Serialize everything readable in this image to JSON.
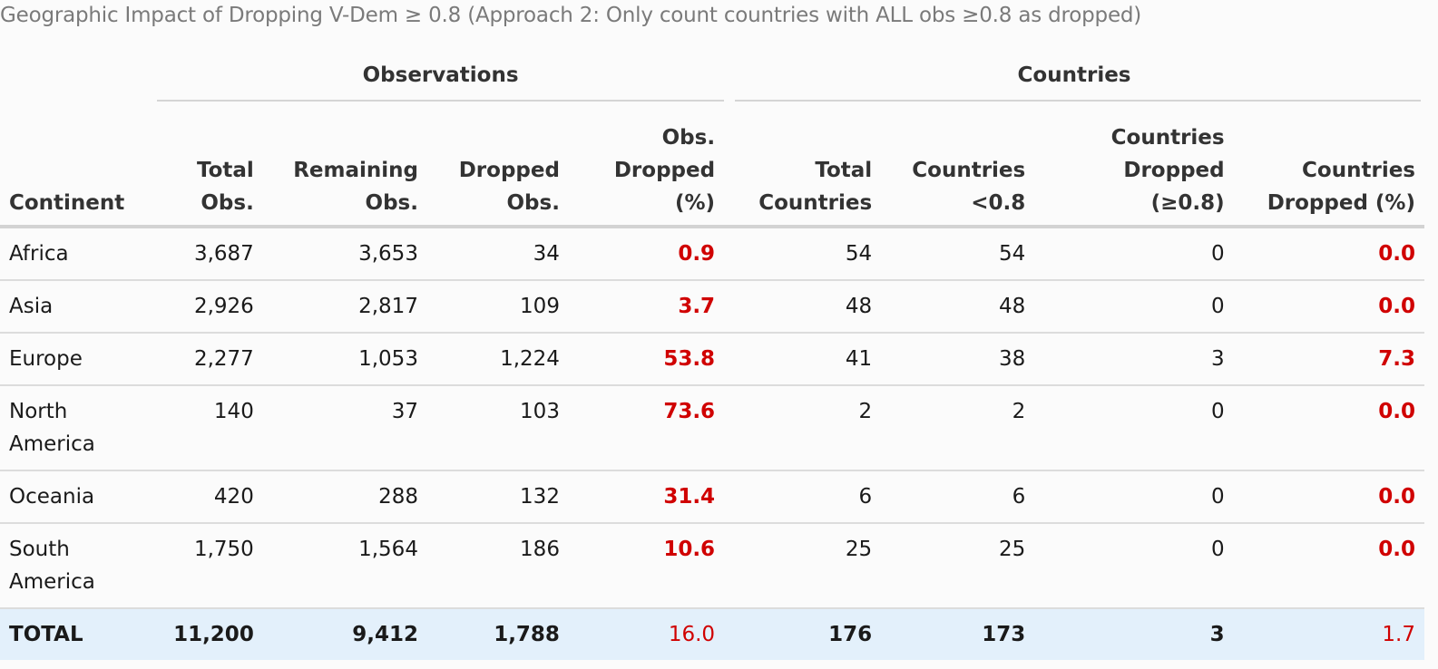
{
  "caption": "Geographic Impact of Dropping V-Dem ≥ 0.8 (Approach 2: Only count countries with ALL obs ≥0.8 as dropped)",
  "spanners": {
    "observations": "Observations",
    "countries": "Countries"
  },
  "columns": [
    {
      "line1": "",
      "line2": "",
      "line3": "Continent"
    },
    {
      "line1": "",
      "line2": "Total",
      "line3": "Obs."
    },
    {
      "line1": "",
      "line2": "Remaining",
      "line3": "Obs."
    },
    {
      "line1": "",
      "line2": "Dropped",
      "line3": "Obs."
    },
    {
      "line1": "Obs.",
      "line2": "Dropped",
      "line3": "(%)"
    },
    {
      "line1": "",
      "line2": "Total",
      "line3": "Countries"
    },
    {
      "line1": "",
      "line2": "Countries",
      "line3": "<0.8"
    },
    {
      "line1": "",
      "line2": "Countries",
      "line3": "Dropped (≥0.8)"
    },
    {
      "line1": "",
      "line2": "Countries",
      "line3": "Dropped (%)"
    }
  ],
  "rows": [
    {
      "continent": "Africa",
      "total_obs": "3,687",
      "remaining_obs": "3,653",
      "dropped_obs": "34",
      "obs_dropped_pct": "0.9",
      "total_countries": "54",
      "countries_lt": "54",
      "countries_dropped": "0",
      "countries_dropped_pct": "0.0"
    },
    {
      "continent": "Asia",
      "total_obs": "2,926",
      "remaining_obs": "2,817",
      "dropped_obs": "109",
      "obs_dropped_pct": "3.7",
      "total_countries": "48",
      "countries_lt": "48",
      "countries_dropped": "0",
      "countries_dropped_pct": "0.0"
    },
    {
      "continent": "Europe",
      "total_obs": "2,277",
      "remaining_obs": "1,053",
      "dropped_obs": "1,224",
      "obs_dropped_pct": "53.8",
      "total_countries": "41",
      "countries_lt": "38",
      "countries_dropped": "3",
      "countries_dropped_pct": "7.3"
    },
    {
      "continent": "North America",
      "total_obs": "140",
      "remaining_obs": "37",
      "dropped_obs": "103",
      "obs_dropped_pct": "73.6",
      "total_countries": "2",
      "countries_lt": "2",
      "countries_dropped": "0",
      "countries_dropped_pct": "0.0"
    },
    {
      "continent": "Oceania",
      "total_obs": "420",
      "remaining_obs": "288",
      "dropped_obs": "132",
      "obs_dropped_pct": "31.4",
      "total_countries": "6",
      "countries_lt": "6",
      "countries_dropped": "0",
      "countries_dropped_pct": "0.0"
    },
    {
      "continent": "South America",
      "total_obs": "1,750",
      "remaining_obs": "1,564",
      "dropped_obs": "186",
      "obs_dropped_pct": "10.6",
      "total_countries": "25",
      "countries_lt": "25",
      "countries_dropped": "0",
      "countries_dropped_pct": "0.0"
    }
  ],
  "total": {
    "continent": "TOTAL",
    "total_obs": "11,200",
    "remaining_obs": "9,412",
    "dropped_obs": "1,788",
    "obs_dropped_pct": "16.0",
    "total_countries": "176",
    "countries_lt": "173",
    "countries_dropped": "3",
    "countries_dropped_pct": "1.7"
  },
  "colors": {
    "highlight_red": "#d00000",
    "total_row_bg": "#e3f0fb",
    "caption_gray": "#7a7a7a"
  }
}
